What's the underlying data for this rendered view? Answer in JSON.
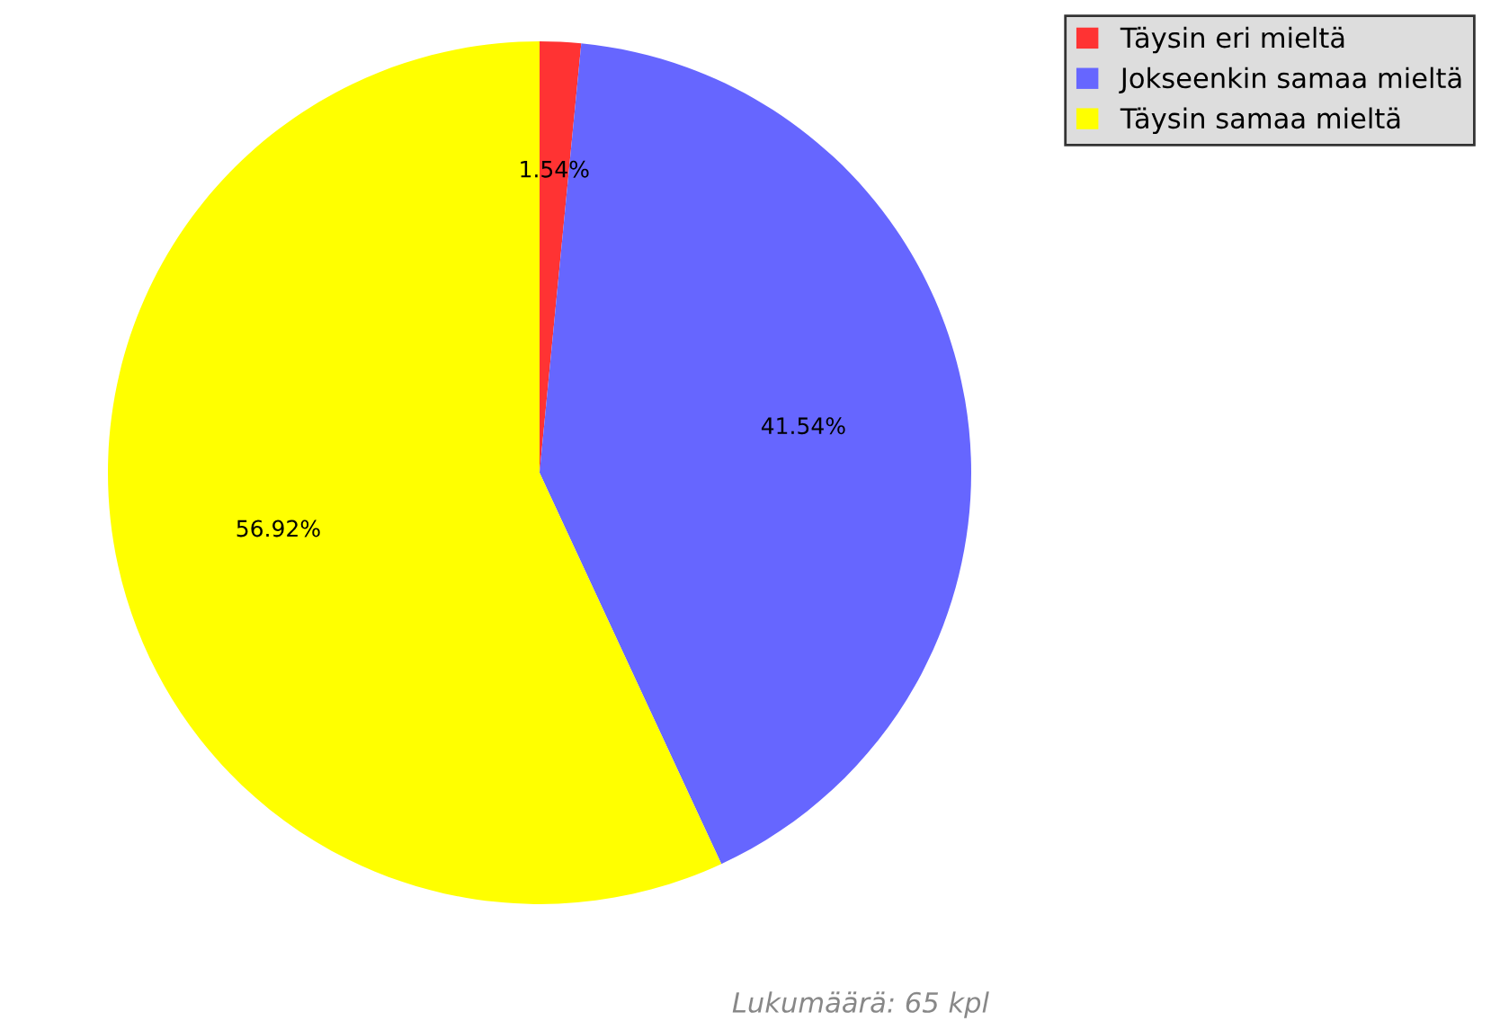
{
  "chart_data": {
    "type": "pie",
    "categories": [
      "Täysin eri mieltä",
      "Jokseenkin samaa mieltä",
      "Täysin samaa mieltä"
    ],
    "values": [
      1.54,
      41.54,
      56.92
    ],
    "colors": [
      "#ff3333",
      "#6666ff",
      "#ffff00"
    ],
    "value_labels": [
      "1.54%",
      "41.54%",
      "56.92%"
    ],
    "legend": "top right",
    "annotations": [
      "Lukumäärä: 65 kpl"
    ]
  }
}
